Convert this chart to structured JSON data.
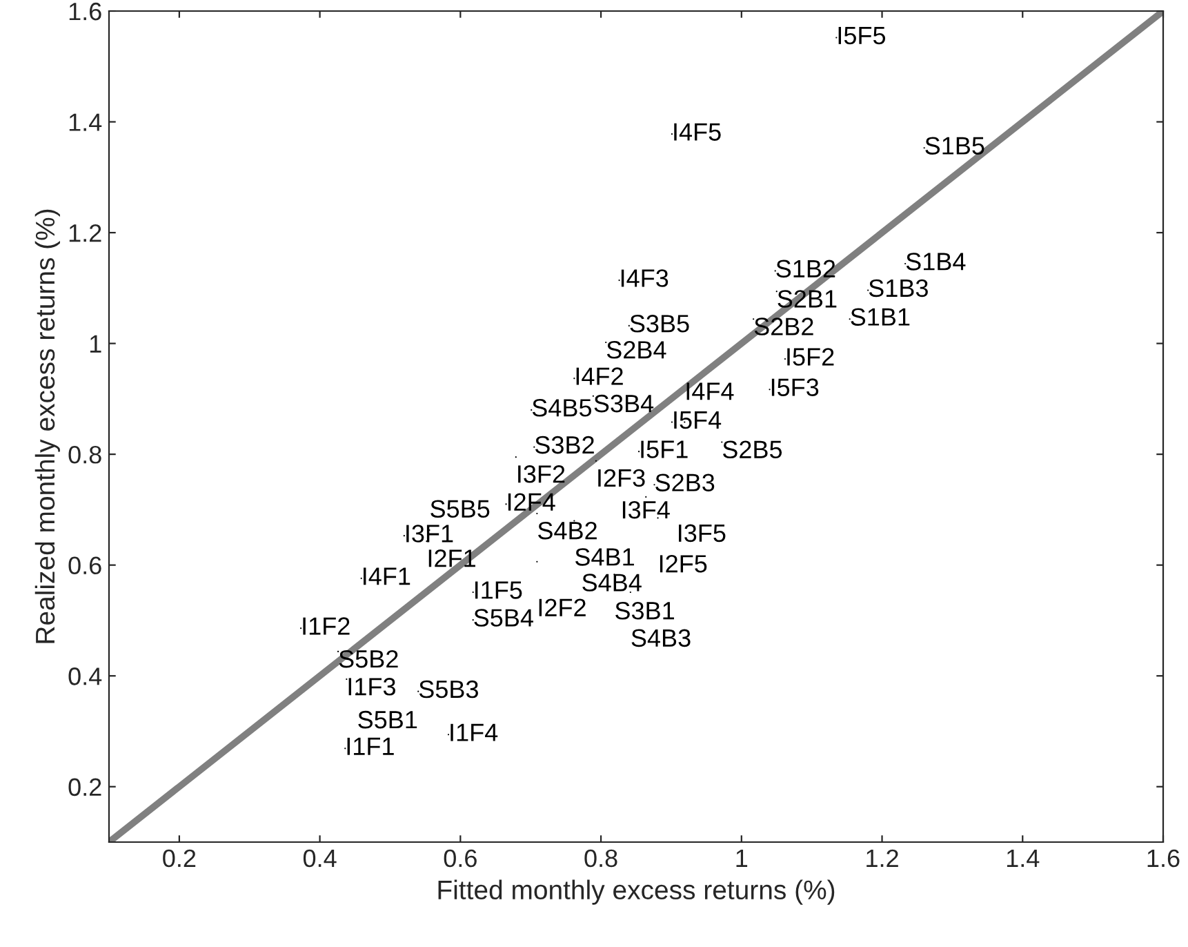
{
  "chart_data": {
    "type": "scatter",
    "xlabel": "Fitted monthly excess returns (%)",
    "ylabel": "Realized monthly excess returns (%)",
    "xlim": [
      0.1,
      1.6
    ],
    "ylim": [
      0.1,
      1.6
    ],
    "xticks": [
      0.2,
      0.4,
      0.6,
      0.8,
      1,
      1.2,
      1.4,
      1.6
    ],
    "yticks": [
      0.2,
      0.4,
      0.6,
      0.8,
      1,
      1.2,
      1.4,
      1.6
    ],
    "grid": false,
    "legend": false,
    "series": [
      {
        "type": "line",
        "color": "#808080",
        "x": [
          0.1,
          1.6
        ],
        "values": [
          0.1,
          1.6
        ],
        "marker": "none",
        "line_style": "solid"
      },
      {
        "color": "#000000",
        "marker": "none",
        "x": [
          1.135,
          0.901,
          1.26,
          1.233,
          1.048,
          1.05,
          1.18,
          1.017,
          1.154,
          0.826,
          0.84,
          0.807,
          1.062,
          0.762,
          1.04,
          0.789,
          0.701,
          0.901,
          0.919,
          0.972,
          0.705,
          0.679,
          0.854,
          0.793,
          0.876,
          0.828,
          0.864,
          0.881,
          0.665,
          0.709,
          0.762,
          0.772,
          0.52,
          0.556,
          0.552,
          0.709,
          0.819,
          0.842,
          0.459,
          0.618,
          0.618,
          0.373,
          0.426,
          0.438,
          0.453,
          0.54,
          0.583,
          0.436
        ],
        "values": [
          1.552,
          1.378,
          1.353,
          1.144,
          1.131,
          1.094,
          1.096,
          1.044,
          1.044,
          1.114,
          1.032,
          1.002,
          0.972,
          0.937,
          0.917,
          0.905,
          0.88,
          0.858,
          0.858,
          0.822,
          0.813,
          0.795,
          0.805,
          0.788,
          0.745,
          0.765,
          0.723,
          0.685,
          0.71,
          0.693,
          0.68,
          0.651,
          0.653,
          0.663,
          0.643,
          0.606,
          0.583,
          0.551,
          0.576,
          0.551,
          0.501,
          0.486,
          0.444,
          0.394,
          0.369,
          0.372,
          0.294,
          0.269
        ],
        "value_labels": [
          "I5F5",
          "I4F5",
          "S1B5",
          "S1B4",
          "S1B2",
          "S2B1",
          "S1B3",
          "S2B2",
          "S1B1",
          "I4F3",
          "S3B5",
          "S2B4",
          "I5F2",
          "I4F2",
          "I5F3",
          "S3B4",
          "S4B5",
          "I5F4",
          "I4F4",
          "S2B5",
          "S3B2",
          "I3F2",
          "I5F1",
          "I2F3",
          "S2B3",
          "I3F4",
          "I3F5",
          "I2F5",
          "I2F4",
          "S4B2",
          "S4B1",
          "S4B4",
          "I3F1",
          "S5B5",
          "I2F1",
          "I2F2",
          "S3B1",
          "S4B3",
          "I4F1",
          "I1F5",
          "S5B4",
          "I1F2",
          "S5B2",
          "I1F3",
          "S5B1",
          "S5B3",
          "I1F4",
          "I1F1"
        ]
      }
    ]
  }
}
